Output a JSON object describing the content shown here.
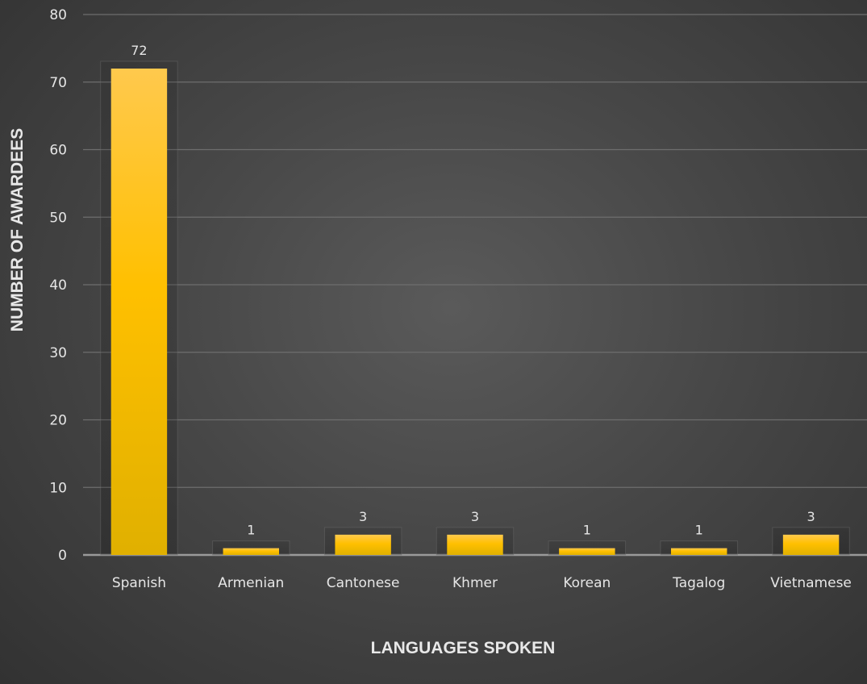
{
  "chart_data": {
    "type": "bar",
    "categories": [
      "Spanish",
      "Armenian",
      "Cantonese",
      "Khmer",
      "Korean",
      "Tagalog",
      "Vietnamese"
    ],
    "values": [
      72,
      1,
      3,
      3,
      1,
      1,
      3
    ],
    "data_labels": [
      "72",
      "1",
      "3",
      "3",
      "1",
      "1",
      "3"
    ],
    "title": "",
    "xlabel": "LANGUAGES SPOKEN",
    "ylabel": "NUMBER OF AWARDEES",
    "ylim": [
      0,
      80
    ],
    "yticks": [
      0,
      10,
      20,
      30,
      40,
      50,
      60,
      70,
      80
    ],
    "grid": true,
    "legend": "none",
    "colors": {
      "bar_top": "#ffc94d",
      "bar_mid": "#ffc000",
      "bar_bottom": "#e0b000",
      "grid": "#6e6e6e",
      "baseline": "#9a9a9a",
      "text": "#e6e6e6"
    }
  }
}
